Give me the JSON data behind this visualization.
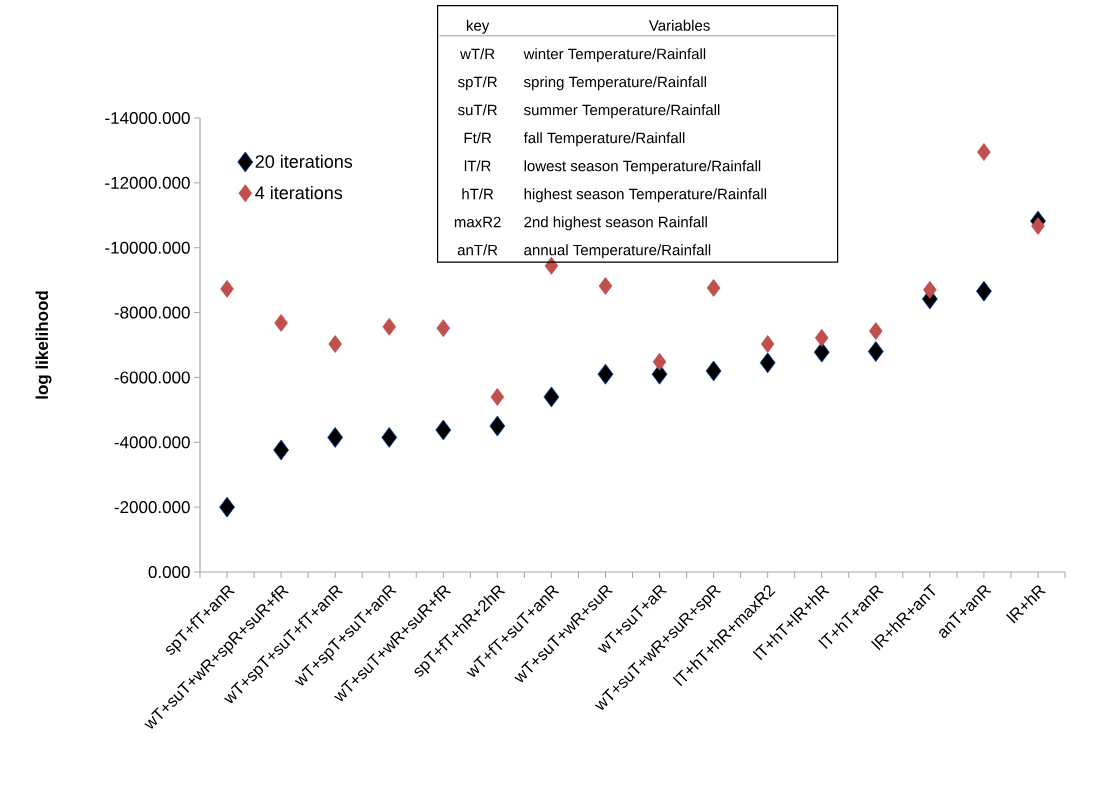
{
  "chart_data": {
    "type": "scatter",
    "ylabel": "log likelihood",
    "categories": [
      "spT+fT+anR",
      "wT+suT+wR+spR+suR+fR",
      "wT+spT+suT+fT+anR",
      "wT+spT+suT+anR",
      "wT+suT+wR+suR+fR",
      "spT+fT+hR+2hR",
      "wT+fT+suT+anR",
      "wT+suT+wR+suR",
      "wT+suT+aR",
      "wT+suT+wR+suR+spR",
      "lT+hT+hR+maxR2",
      "lT+hT+lR+hR",
      "lT+hT+anR",
      "lR+hR+anT",
      "anT+anR",
      "lR+hR"
    ],
    "series": [
      {
        "name": "20 iterations",
        "color": "#000000",
        "values": [
          -2000,
          -3760,
          -4150,
          -4150,
          -4380,
          -4500,
          -5400,
          -6100,
          -6100,
          -6200,
          -6450,
          -6780,
          -6800,
          -8420,
          -8660,
          -10820
        ]
      },
      {
        "name": "4 iterations",
        "color": "#c0504d",
        "values": [
          -8730,
          -7680,
          -7030,
          -7560,
          -7520,
          -5400,
          -9440,
          -8820,
          -6480,
          -8760,
          -7030,
          -7220,
          -7430,
          -8700,
          -12950,
          -10670
        ]
      }
    ],
    "ylim": [
      0,
      -14000
    ],
    "yticks": [
      {
        "value": 0,
        "label": "0.000"
      },
      {
        "value": -2000,
        "label": "-2000.000"
      },
      {
        "value": -4000,
        "label": "-4000.000"
      },
      {
        "value": -6000,
        "label": "-6000.000"
      },
      {
        "value": -8000,
        "label": "-8000.000"
      },
      {
        "value": -10000,
        "label": "-10000.000"
      },
      {
        "value": -12000,
        "label": "-12000.000"
      },
      {
        "value": -14000,
        "label": "-14000.000"
      }
    ],
    "marker": "diamond",
    "legend": "top left",
    "annotations": [
      "key",
      "Variables",
      "wT/R",
      "winter Temperature/Rainfall",
      "spT/R",
      "spring Temperature/Rainfall",
      "suT/R",
      "summer Temperature/Rainfall",
      "Ft/R",
      "fall Temperature/Rainfall",
      "lT/R",
      "lowest season Temperature/Rainfall",
      "hT/R",
      "highest season Temperature/Rainfall",
      "maxR2",
      "2nd highest season Rainfall",
      "anT/R",
      "annual Temperature/Rainfall"
    ]
  }
}
